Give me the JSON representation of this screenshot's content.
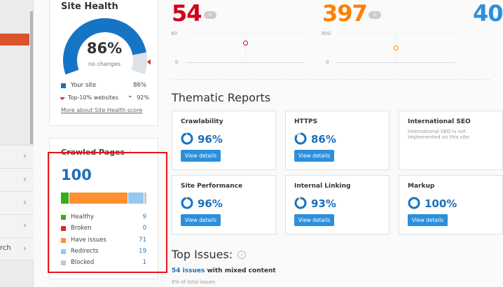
{
  "sidebar": {
    "items": [
      {
        "label": ""
      },
      {
        "label": ""
      },
      {
        "label": ""
      },
      {
        "label": ""
      },
      {
        "label": "rch"
      }
    ],
    "chevron": "›"
  },
  "site_health": {
    "title": "Site Health",
    "value": "86%",
    "value_num": 86,
    "subtitle": "no changes",
    "legend": [
      {
        "label": "Your site",
        "value": "86%",
        "color": "#1674c4"
      },
      {
        "label": "Top-10% websites",
        "value": "92%",
        "color": "#e0262f"
      }
    ],
    "link": "More about Site Health score"
  },
  "crawled_pages": {
    "title": "Crawled Pages",
    "info_icon": "info-icon",
    "total": "100",
    "items": [
      {
        "label": "Healthy",
        "value": "9",
        "count": 9,
        "color": "#3aac1a"
      },
      {
        "label": "Broken",
        "value": "0",
        "count": 0,
        "color": "#e0262f"
      },
      {
        "label": "Have issues",
        "value": "71",
        "count": 71,
        "color": "#ff9130"
      },
      {
        "label": "Redirects",
        "value": "19",
        "count": 19,
        "color": "#95c8ef"
      },
      {
        "label": "Blocked",
        "value": "1",
        "count": 1,
        "color": "#c6c6c6"
      }
    ]
  },
  "metrics": [
    {
      "value": "54",
      "badge": "0",
      "color": "#d0021b",
      "y_max": "80",
      "y_min": "0",
      "point": 54,
      "max": 80
    },
    {
      "value": "397",
      "badge": "0",
      "color": "#ff8000",
      "y_max": "800",
      "y_min": "0",
      "point": 397,
      "max": 800
    },
    {
      "value": "40",
      "color": "#2c8fdc"
    }
  ],
  "thematic": {
    "title": "Thematic Reports",
    "cards": [
      {
        "title": "Crawlability",
        "pct": "96%",
        "value": 96,
        "button": "View details"
      },
      {
        "title": "HTTPS",
        "pct": "86%",
        "value": 86,
        "button": "View details"
      },
      {
        "title": "International SEO",
        "note": "International SEO is not implemented on this site."
      },
      {
        "title": "Site Performance",
        "pct": "96%",
        "value": 96,
        "button": "View details"
      },
      {
        "title": "Internal Linking",
        "pct": "93%",
        "value": 93,
        "button": "View details"
      },
      {
        "title": "Markup",
        "pct": "100%",
        "value": 100,
        "button": "View details"
      }
    ]
  },
  "top_issues": {
    "title": "Top Issues:",
    "issue_link": "54 issues",
    "issue_text": " with mixed content",
    "share": "6%",
    "share_text": " of total issues"
  }
}
